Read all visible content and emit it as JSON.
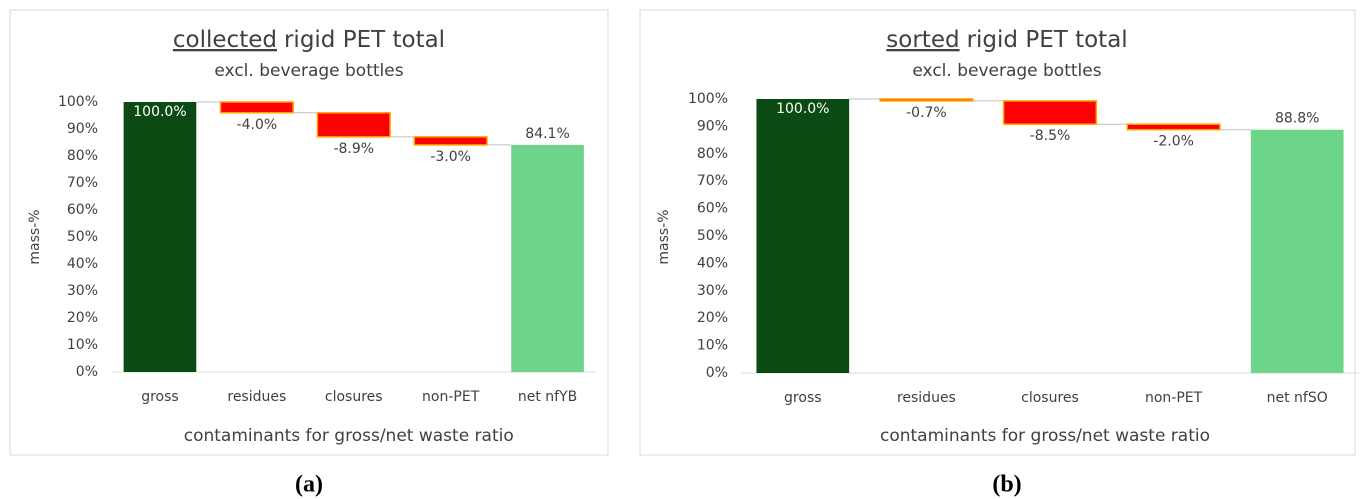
{
  "chart_data": [
    {
      "type": "waterfall",
      "title": [
        "collected",
        "rigid PET total"
      ],
      "subtitle": "excl. beverage bottles",
      "y_label": "mass-%",
      "x_label": "contaminants for gross/net waste ratio",
      "caption": "(a)",
      "categories": [
        "gross",
        "residues",
        "closures",
        "non-PET",
        "net nfYB"
      ],
      "measure": [
        "absolute",
        "relative",
        "relative",
        "relative",
        "absolute"
      ],
      "values": [
        100.0,
        -4.0,
        -8.9,
        -3.0,
        84.1
      ],
      "value_labels": [
        "100.0%",
        "-4.0%",
        "-8.9%",
        "-3.0%",
        "84.1%"
      ],
      "colors": [
        "#0b4a12",
        "#ff0000",
        "#ff0000",
        "#ff0000",
        "#6dd58a"
      ],
      "ylim": [
        0,
        100
      ],
      "yticks": [
        {
          "value": 0,
          "label": "0%"
        },
        {
          "value": 10,
          "label": "10%"
        },
        {
          "value": 20,
          "label": "20%"
        },
        {
          "value": 30,
          "label": "30%"
        },
        {
          "value": 40,
          "label": "40%"
        },
        {
          "value": 50,
          "label": "50%"
        },
        {
          "value": 60,
          "label": "60%"
        },
        {
          "value": 70,
          "label": "70%"
        },
        {
          "value": 80,
          "label": "80%"
        },
        {
          "value": 90,
          "label": "90%"
        },
        {
          "value": 100,
          "label": "100%"
        }
      ]
    },
    {
      "type": "waterfall",
      "title": [
        "sorted",
        "rigid PET total"
      ],
      "subtitle": "excl. beverage bottles",
      "y_label": "mass-%",
      "x_label": "contaminants for gross/net waste ratio",
      "caption": "(b)",
      "categories": [
        "gross",
        "residues",
        "closures",
        "non-PET",
        "net nfSO"
      ],
      "measure": [
        "absolute",
        "relative",
        "relative",
        "relative",
        "absolute"
      ],
      "values": [
        100.0,
        -0.7,
        -8.5,
        -2.0,
        88.8
      ],
      "value_labels": [
        "100.0%",
        "-0.7%",
        "-8.5%",
        "-2.0%",
        "88.8%"
      ],
      "colors": [
        "#0b4a12",
        "#ff0000",
        "#ff0000",
        "#ff0000",
        "#6dd58a"
      ],
      "ylim": [
        0,
        100
      ],
      "yticks": [
        {
          "value": 0,
          "label": "0%"
        },
        {
          "value": 10,
          "label": "10%"
        },
        {
          "value": 20,
          "label": "20%"
        },
        {
          "value": 30,
          "label": "30%"
        },
        {
          "value": 40,
          "label": "40%"
        },
        {
          "value": 50,
          "label": "50%"
        },
        {
          "value": 60,
          "label": "60%"
        },
        {
          "value": 70,
          "label": "70%"
        },
        {
          "value": 80,
          "label": "80%"
        },
        {
          "value": 90,
          "label": "90%"
        },
        {
          "value": 100,
          "label": "100%"
        }
      ]
    }
  ]
}
